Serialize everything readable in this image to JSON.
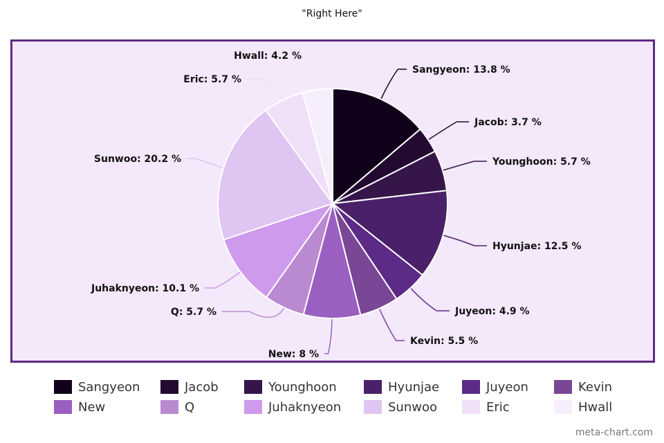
{
  "chart_data": {
    "type": "pie",
    "title": "\"Right Here\"",
    "slices": [
      {
        "name": "Sangyeon",
        "value": 13.8,
        "label": "Sangyeon: 13.8 %",
        "color": "#12011a"
      },
      {
        "name": "Jacob",
        "value": 3.7,
        "label": "Jacob: 3.7 %",
        "color": "#220a30"
      },
      {
        "name": "Younghoon",
        "value": 5.7,
        "label": "Younghoon: 5.7 %",
        "color": "#36164a"
      },
      {
        "name": "Hyunjae",
        "value": 12.5,
        "label": "Hyunjae: 12.5 %",
        "color": "#4a2168"
      },
      {
        "name": "Juyeon",
        "value": 4.9,
        "label": "Juyeon: 4.9 %",
        "color": "#5c2a87"
      },
      {
        "name": "Kevin",
        "value": 5.5,
        "label": "Kevin: 5.5 %",
        "color": "#7a4696"
      },
      {
        "name": "New",
        "value": 8,
        "label": "New: 8 %",
        "color": "#9a5fc0"
      },
      {
        "name": "Q",
        "value": 5.7,
        "label": "Q: 5.7 %",
        "color": "#b98ad0"
      },
      {
        "name": "Juhaknyeon",
        "value": 10.1,
        "label": "Juhaknyeon: 10.1 %",
        "color": "#cd9aec"
      },
      {
        "name": "Sunwoo",
        "value": 20.2,
        "label": "Sunwoo: 20.2 %",
        "color": "#dfc5f1"
      },
      {
        "name": "Eric",
        "value": 5.7,
        "label": "Eric: 5.7 %",
        "color": "#efe0f7"
      },
      {
        "name": "Hwall",
        "value": 4.2,
        "label": "Hwall: 4.2 %",
        "color": "#f6eefc"
      }
    ],
    "legend_position": "bottom"
  },
  "watermark": "meta-chart.com",
  "colors": {
    "frame_border": "#5c2a7e",
    "frame_background": "#f4e8fb"
  }
}
